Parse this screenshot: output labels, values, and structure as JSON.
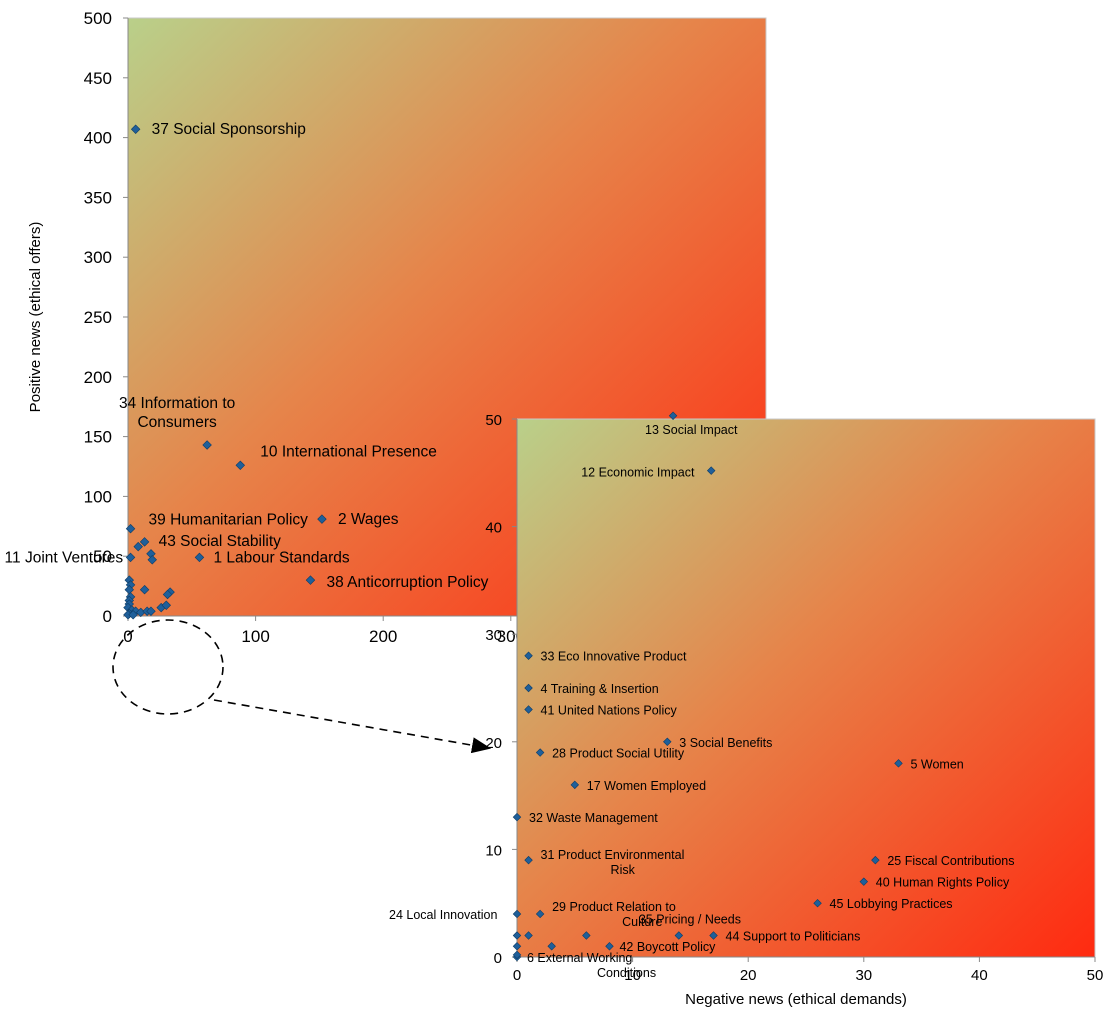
{
  "chart_data": [
    {
      "type": "scatter",
      "title": "",
      "xlabel": "",
      "ylabel": "Positive news (ethical offers)",
      "xlim": [
        0,
        500
      ],
      "ylim": [
        0,
        500
      ],
      "xticks": [
        "0",
        "100",
        "200",
        "300",
        "400",
        "500"
      ],
      "yticks": [
        "0",
        "50",
        "100",
        "150",
        "200",
        "250",
        "300",
        "350",
        "400",
        "450",
        "500"
      ],
      "gradient_colors": [
        "#b9d08a",
        "#e6844a",
        "#ff2a10"
      ],
      "marker_color": "#1f5f9a",
      "points": [
        {
          "x": 6,
          "y": 407,
          "label": "37 Social Sponsorship"
        },
        {
          "x": 62,
          "y": 143,
          "label": "34 Information to Consumers",
          "label_lines": [
            "34 Information to",
            "Consumers"
          ]
        },
        {
          "x": 88,
          "y": 126,
          "label": "10 International Presence"
        },
        {
          "x": 152,
          "y": 81,
          "label": "2 Wages"
        },
        {
          "x": 2,
          "y": 73,
          "label": "39 Humanitarian Policy"
        },
        {
          "x": 13,
          "y": 62,
          "label": "43 Social Stability"
        },
        {
          "x": 8,
          "y": 58,
          "label": ""
        },
        {
          "x": 18,
          "y": 52,
          "label": ""
        },
        {
          "x": 19,
          "y": 47,
          "label": ""
        },
        {
          "x": 56,
          "y": 49,
          "label": "1 Labour Standards"
        },
        {
          "x": 2,
          "y": 49,
          "label": "11 Joint Ventures"
        },
        {
          "x": 143,
          "y": 30,
          "label": "38 Anticorruption Policy"
        },
        {
          "x": 1,
          "y": 30,
          "label": ""
        },
        {
          "x": 2,
          "y": 26,
          "label": ""
        },
        {
          "x": 1,
          "y": 22,
          "label": ""
        },
        {
          "x": 13,
          "y": 22,
          "label": ""
        },
        {
          "x": 33,
          "y": 20,
          "label": ""
        },
        {
          "x": 31,
          "y": 18,
          "label": ""
        },
        {
          "x": 2,
          "y": 16,
          "label": ""
        },
        {
          "x": 1,
          "y": 13,
          "label": ""
        },
        {
          "x": 1,
          "y": 10,
          "label": ""
        },
        {
          "x": 0,
          "y": 7,
          "label": ""
        },
        {
          "x": 3,
          "y": 5,
          "label": ""
        },
        {
          "x": 6,
          "y": 4,
          "label": ""
        },
        {
          "x": 10,
          "y": 3,
          "label": ""
        },
        {
          "x": 15,
          "y": 4,
          "label": ""
        },
        {
          "x": 18,
          "y": 4,
          "label": ""
        },
        {
          "x": 26,
          "y": 7,
          "label": ""
        },
        {
          "x": 30,
          "y": 9,
          "label": ""
        },
        {
          "x": 1,
          "y": 2,
          "label": ""
        },
        {
          "x": 0,
          "y": 1,
          "label": ""
        },
        {
          "x": 4,
          "y": 1,
          "label": ""
        }
      ]
    },
    {
      "type": "scatter",
      "title": "",
      "xlabel": "Negative news (ethical demands)",
      "ylabel": "",
      "xlim": [
        0,
        50
      ],
      "ylim": [
        0,
        50
      ],
      "xticks": [
        "0",
        "10",
        "20",
        "30",
        "40",
        "50"
      ],
      "yticks": [
        "0",
        "10",
        "20",
        "30",
        "40",
        "50"
      ],
      "points": [
        {
          "x": 13.5,
          "y": 50.3,
          "label": "13 Social Impact"
        },
        {
          "x": 16.8,
          "y": 45.2,
          "label": "12 Economic Impact"
        },
        {
          "x": 1,
          "y": 28,
          "label": "33 Eco Innovative Product"
        },
        {
          "x": 1,
          "y": 25,
          "label": "4 Training & Insertion"
        },
        {
          "x": 1,
          "y": 23,
          "label": "41 United Nations Policy"
        },
        {
          "x": 13,
          "y": 20,
          "label": "3 Social Benefits"
        },
        {
          "x": 2,
          "y": 19,
          "label": "28 Product Social Utility"
        },
        {
          "x": 33,
          "y": 18,
          "label": "5 Women"
        },
        {
          "x": 5,
          "y": 16,
          "label": "17 Women Employed"
        },
        {
          "x": 0,
          "y": 13,
          "label": "32 Waste Management"
        },
        {
          "x": 1,
          "y": 9,
          "label": "31 Product Environmental Risk",
          "label_lines": [
            "31 Product Environmental",
            "Risk"
          ]
        },
        {
          "x": 31,
          "y": 9,
          "label": "25 Fiscal Contributions"
        },
        {
          "x": 30,
          "y": 7,
          "label": "40 Human Rights Policy"
        },
        {
          "x": 26,
          "y": 5,
          "label": "45 Lobbying Practices"
        },
        {
          "x": 0,
          "y": 4,
          "label": "24 Local Innovation"
        },
        {
          "x": 2,
          "y": 4,
          "label": "29 Product Relation to Culture",
          "label_lines": [
            "29 Product Relation to",
            "Culture"
          ]
        },
        {
          "x": 14,
          "y": 2,
          "label": "35 Pricing / Needs"
        },
        {
          "x": 17,
          "y": 2,
          "label": "44 Support to Politicians"
        },
        {
          "x": 8,
          "y": 1,
          "label": "42 Boycott Policy"
        },
        {
          "x": 0,
          "y": 0,
          "label": "6 External Working Conditions",
          "label_lines": [
            "6 External Working",
            "Conditions"
          ]
        },
        {
          "x": 0,
          "y": 2,
          "label": ""
        },
        {
          "x": 0,
          "y": 1,
          "label": ""
        },
        {
          "x": 1,
          "y": 2,
          "label": ""
        },
        {
          "x": 3,
          "y": 1,
          "label": ""
        },
        {
          "x": 6,
          "y": 2,
          "label": ""
        },
        {
          "x": 0,
          "y": 0.2,
          "label": ""
        }
      ]
    }
  ]
}
